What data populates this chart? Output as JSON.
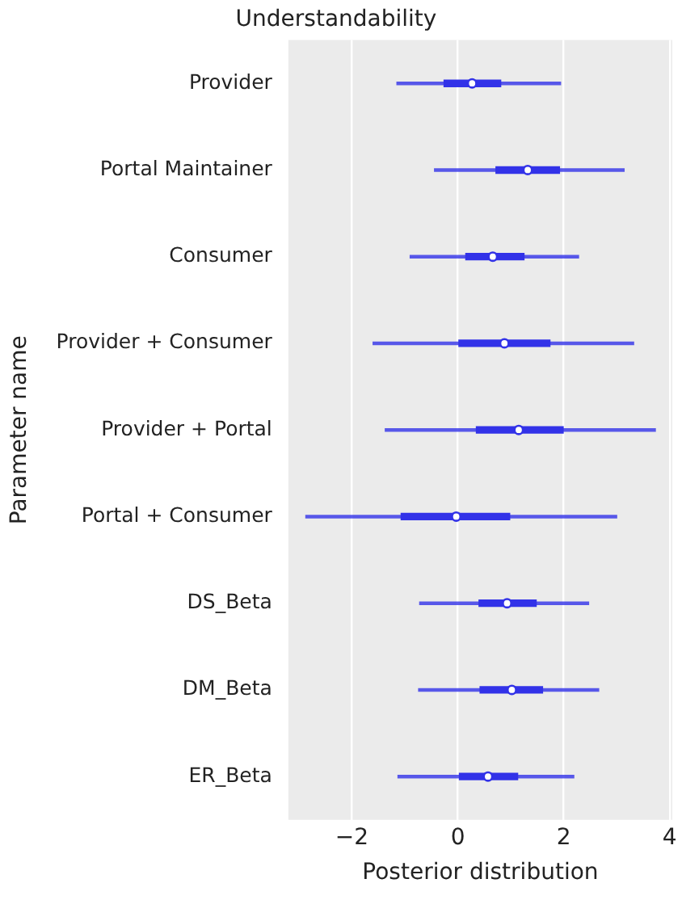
{
  "chart_data": {
    "type": "box",
    "orientation": "horizontal",
    "title": "Understandability",
    "xlabel": "Posterior distribution",
    "ylabel": "Parameter name",
    "categories": [
      "Provider",
      "Portal Maintainer",
      "Consumer",
      "Provider + Consumer",
      "Provider + Portal",
      "Portal + Consumer",
      "DS_Beta",
      "DM_Beta",
      "ER_Beta"
    ],
    "color": "#3232e8",
    "boxes": [
      {
        "low": -1.15,
        "q1": -0.26,
        "median": 0.27,
        "q3": 0.81,
        "high": 1.94
      },
      {
        "low": -0.44,
        "q1": 0.72,
        "median": 1.32,
        "q3": 1.92,
        "high": 3.14
      },
      {
        "low": -0.9,
        "q1": 0.15,
        "median": 0.66,
        "q3": 1.25,
        "high": 2.28
      },
      {
        "low": -1.6,
        "q1": 0.02,
        "median": 0.88,
        "q3": 1.74,
        "high": 3.32
      },
      {
        "low": -1.37,
        "q1": 0.35,
        "median": 1.15,
        "q3": 1.99,
        "high": 3.73
      },
      {
        "low": -2.87,
        "q1": -1.07,
        "median": -0.03,
        "q3": 0.98,
        "high": 3.0
      },
      {
        "low": -0.72,
        "q1": 0.4,
        "median": 0.93,
        "q3": 1.48,
        "high": 2.47
      },
      {
        "low": -0.74,
        "q1": 0.42,
        "median": 1.02,
        "q3": 1.6,
        "high": 2.66
      },
      {
        "low": -1.13,
        "q1": 0.03,
        "median": 0.57,
        "q3": 1.13,
        "high": 2.19
      }
    ],
    "xlim": [
      -3.2,
      4.05
    ],
    "xticks": [
      {
        "value": -2,
        "label": "−2"
      },
      0,
      2,
      4
    ],
    "grid": "x",
    "marker": "circle"
  }
}
